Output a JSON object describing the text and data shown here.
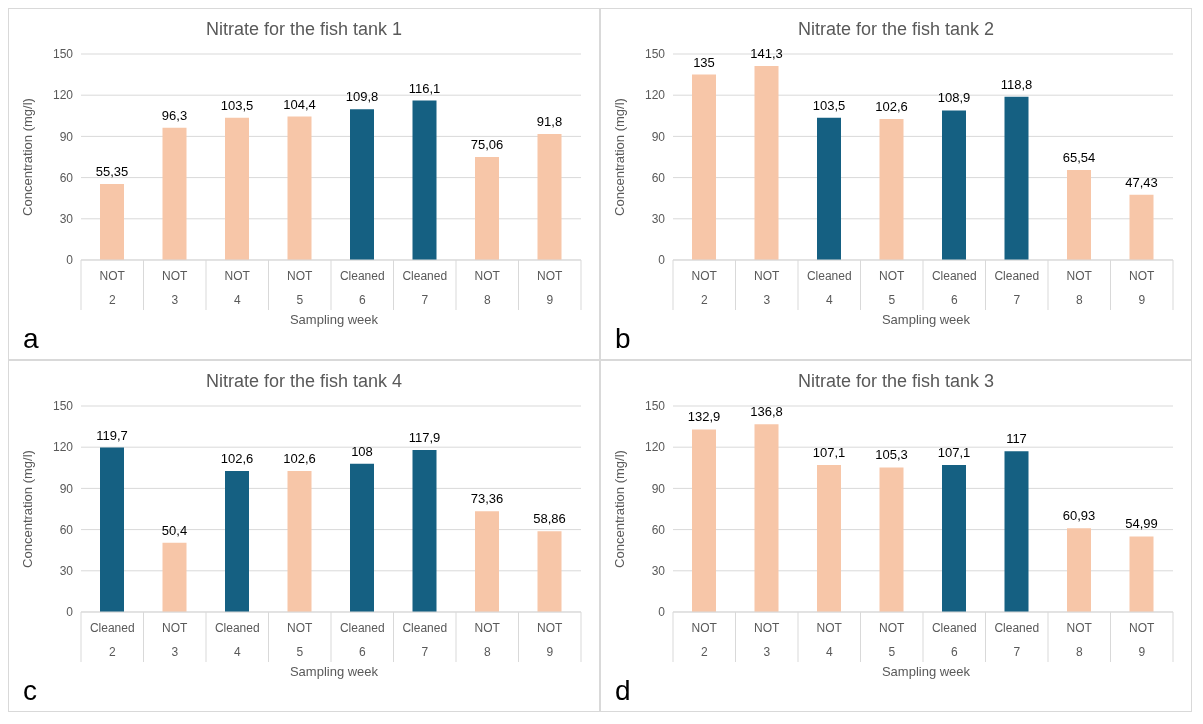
{
  "chart_data": [
    {
      "type": "bar",
      "title": "Nitrate for the fish tank 1",
      "xlabel": "Sampling week",
      "ylabel": "Concentration (mg/l)",
      "categories": [
        "2",
        "3",
        "4",
        "5",
        "6",
        "7",
        "8",
        "9"
      ],
      "values": [
        55.35,
        96.3,
        103.5,
        104.4,
        109.8,
        116.1,
        75.06,
        91.8
      ],
      "value_labels": [
        "55,35",
        "96,3",
        "103,5",
        "104,4",
        "109,8",
        "116,1",
        "75,06",
        "91,8"
      ],
      "colors": [
        "#f7c6a8",
        "#f7c6a8",
        "#f7c6a8",
        "#f7c6a8",
        "#156082",
        "#156082",
        "#f7c6a8",
        "#f7c6a8"
      ],
      "ylim": [
        0,
        150
      ],
      "yticks": [
        0,
        30,
        60,
        90,
        120,
        150
      ],
      "grid": "y",
      "annotations": [
        "NOT",
        "NOT",
        "NOT",
        "NOT",
        "Cleaned",
        "Cleaned",
        "NOT",
        "NOT",
        "a"
      ]
    },
    {
      "type": "bar",
      "title": "Nitrate for the fish tank 2",
      "xlabel": "Sampling week",
      "ylabel": "Concentration (mg/l)",
      "categories": [
        "2",
        "3",
        "4",
        "5",
        "6",
        "7",
        "8",
        "9"
      ],
      "values": [
        135,
        141.3,
        103.5,
        102.6,
        108.9,
        118.8,
        65.54,
        47.43
      ],
      "value_labels": [
        "135",
        "141,3",
        "103,5",
        "102,6",
        "108,9",
        "118,8",
        "65,54",
        "47,43"
      ],
      "colors": [
        "#f7c6a8",
        "#f7c6a8",
        "#156082",
        "#f7c6a8",
        "#156082",
        "#156082",
        "#f7c6a8",
        "#f7c6a8"
      ],
      "ylim": [
        0,
        150
      ],
      "yticks": [
        0,
        30,
        60,
        90,
        120,
        150
      ],
      "grid": "y",
      "annotations": [
        "NOT",
        "NOT",
        "Cleaned",
        "NOT",
        "Cleaned",
        "Cleaned",
        "NOT",
        "NOT",
        "b"
      ]
    },
    {
      "type": "bar",
      "title": "Nitrate for the fish tank 4",
      "xlabel": "Sampling week",
      "ylabel": "Concentration (mg/l)",
      "categories": [
        "2",
        "3",
        "4",
        "5",
        "6",
        "7",
        "8",
        "9"
      ],
      "values": [
        119.7,
        50.4,
        102.6,
        102.6,
        108,
        117.9,
        73.36,
        58.86
      ],
      "value_labels": [
        "119,7",
        "50,4",
        "102,6",
        "102,6",
        "108",
        "117,9",
        "73,36",
        "58,86"
      ],
      "colors": [
        "#156082",
        "#f7c6a8",
        "#156082",
        "#f7c6a8",
        "#156082",
        "#156082",
        "#f7c6a8",
        "#f7c6a8"
      ],
      "ylim": [
        0,
        150
      ],
      "yticks": [
        0,
        30,
        60,
        90,
        120,
        150
      ],
      "grid": "y",
      "annotations": [
        "Cleaned",
        "NOT",
        "Cleaned",
        "NOT",
        "Cleaned",
        "Cleaned",
        "NOT",
        "NOT",
        "c"
      ]
    },
    {
      "type": "bar",
      "title": "Nitrate for the fish tank 3",
      "xlabel": "Sampling week",
      "ylabel": "Concentration (mg/l)",
      "categories": [
        "2",
        "3",
        "4",
        "5",
        "6",
        "7",
        "8",
        "9"
      ],
      "values": [
        132.9,
        136.8,
        107.1,
        105.3,
        107.1,
        117,
        60.93,
        54.99
      ],
      "value_labels": [
        "132,9",
        "136,8",
        "107,1",
        "105,3",
        "107,1",
        "117",
        "60,93",
        "54,99"
      ],
      "colors": [
        "#f7c6a8",
        "#f7c6a8",
        "#f7c6a8",
        "#f7c6a8",
        "#156082",
        "#156082",
        "#f7c6a8",
        "#f7c6a8"
      ],
      "ylim": [
        0,
        150
      ],
      "yticks": [
        0,
        30,
        60,
        90,
        120,
        150
      ],
      "grid": "y",
      "annotations": [
        "NOT",
        "NOT",
        "NOT",
        "NOT",
        "Cleaned",
        "Cleaned",
        "NOT",
        "NOT",
        "d"
      ]
    }
  ]
}
